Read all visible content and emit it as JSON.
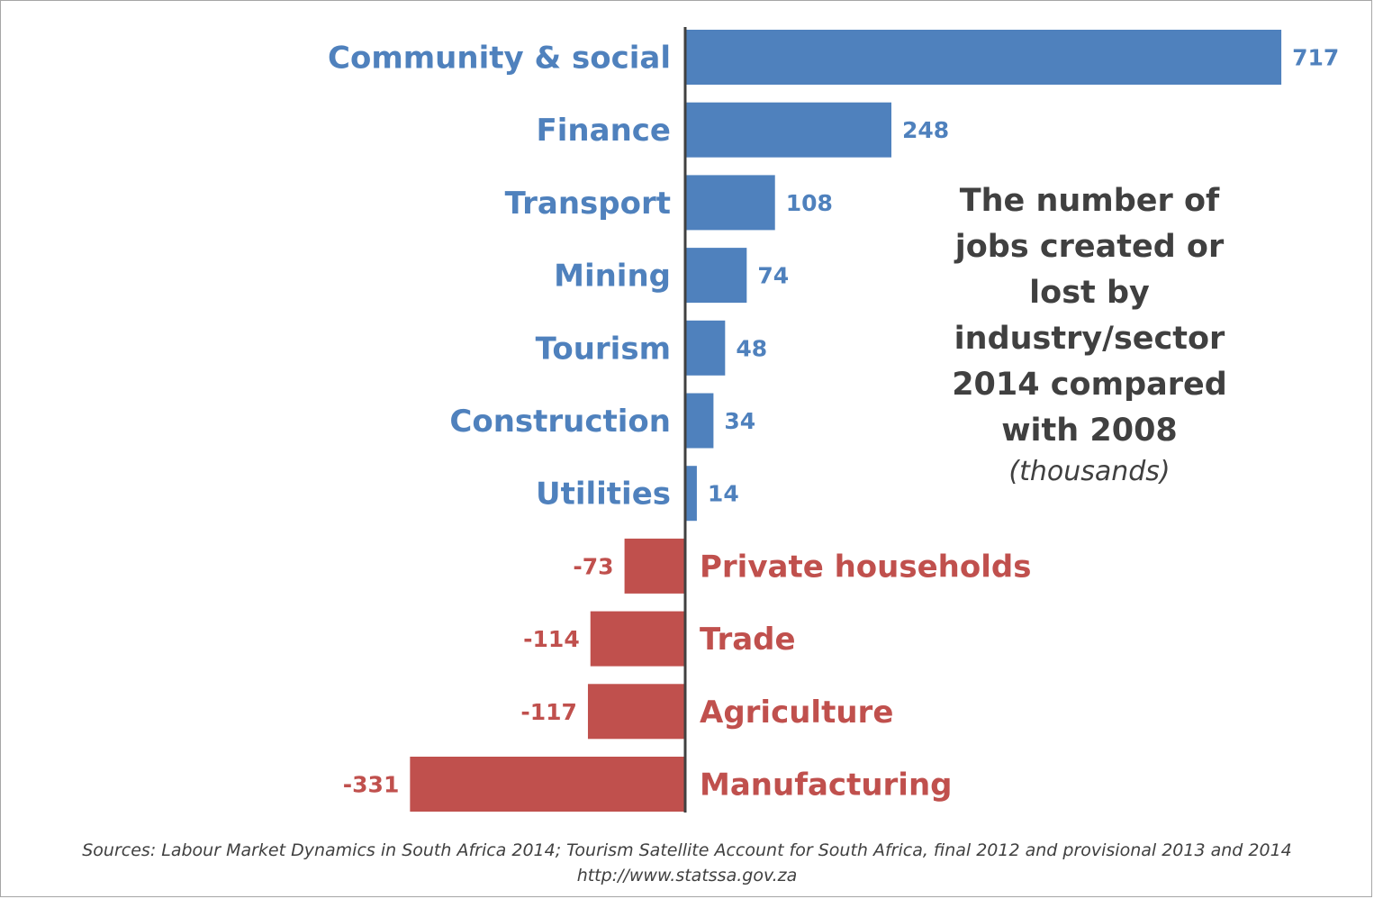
{
  "chart_data": {
    "type": "bar",
    "orientation": "horizontal",
    "title": "The number of jobs created or lost by industry/sector 2014 compared with 2008",
    "unit": "(thousands)",
    "categories": [
      "Community & social",
      "Finance",
      "Transport",
      "Mining",
      "Tourism",
      "Construction",
      "Utilities",
      "Private households",
      "Trade",
      "Agriculture",
      "Manufacturing"
    ],
    "values": [
      717,
      248,
      108,
      74,
      48,
      34,
      14,
      -73,
      -114,
      -117,
      -331
    ],
    "data_labels": [
      "717",
      "248",
      "108",
      "74",
      "48",
      "34",
      "14",
      "-73",
      "-114",
      "-117",
      "-331"
    ],
    "colors": {
      "positive": "#4f81bd",
      "negative": "#c0504d",
      "axis": "#404040"
    },
    "grid": false,
    "legend": "none"
  },
  "title_lines": [
    "The number of",
    "jobs created or",
    "lost by",
    "industry/sector",
    "2014 compared",
    "with 2008"
  ],
  "unit_label": "(thousands)",
  "sources": {
    "line1": "Sources: Labour Market Dynamics in South Africa 2014; Tourism Satellite Account for South Africa, final 2012 and provisional 2013 and 2014",
    "line2": "http://www.statssa.gov.za"
  }
}
